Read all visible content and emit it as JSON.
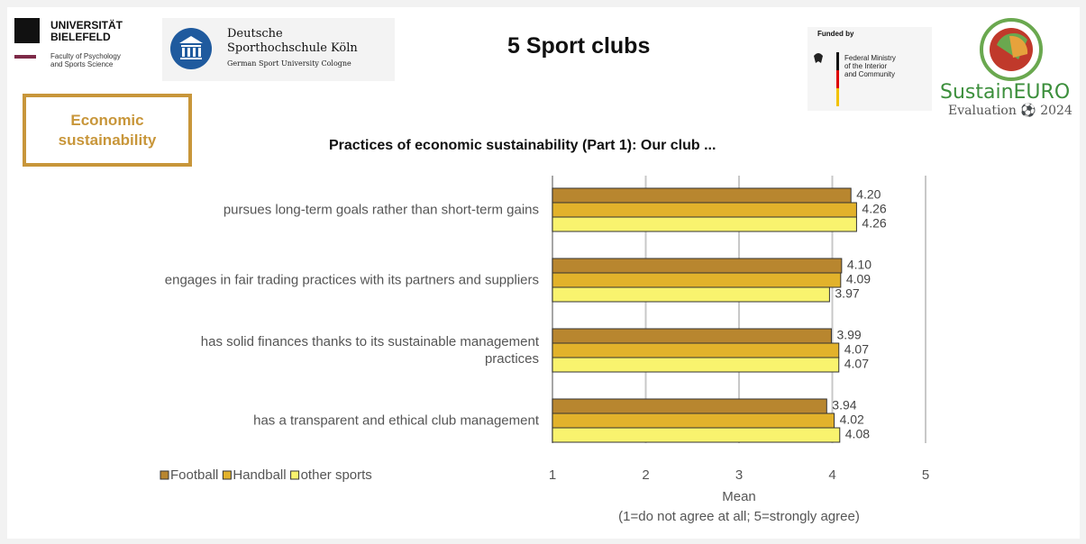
{
  "header": {
    "uni": [
      "UNIVERSITÄT",
      "BIELEFELD"
    ],
    "uni_faculty": [
      "Faculty of Psychology",
      "and Sports Science"
    ],
    "dshs": [
      "Deutsche",
      "Sporthochschule Köln"
    ],
    "dshs_en": "German Sport University Cologne",
    "slide_title": "5 Sport clubs",
    "funded_by": "Funded by",
    "ministry": [
      "Federal Ministry",
      "of the Interior",
      "and Community"
    ],
    "brand": "SustainEURO",
    "brand_sub": "Evaluation",
    "brand_year": "2024"
  },
  "section": "Economic sustainability",
  "chart_data": {
    "type": "bar",
    "orientation": "horizontal",
    "title": "Practices of economic sustainability (Part 1): Our club ...",
    "categories": [
      "pursues long-term goals rather than short-term gains",
      "engages in fair trading practices with its partners and suppliers",
      "has solid finances thanks to its sustainable management practices",
      "has a transparent and ethical club management"
    ],
    "series": [
      {
        "name": "Football",
        "color": "#b8862f",
        "values": [
          4.2,
          4.1,
          3.99,
          3.94
        ],
        "value_labels": [
          "4.20",
          "4.10",
          "3.99",
          "3.94"
        ]
      },
      {
        "name": "Handball",
        "color": "#e2b22b",
        "values": [
          4.26,
          4.09,
          4.07,
          4.02
        ],
        "value_labels": [
          "4.26",
          "4.09",
          "4.07",
          "4.02"
        ]
      },
      {
        "name": "other sports",
        "color": "#f9f36e",
        "values": [
          4.26,
          3.97,
          4.07,
          4.08
        ],
        "value_labels": [
          "4.26",
          "3.97",
          "4.07",
          "4.08"
        ]
      }
    ],
    "xlim": [
      1,
      5
    ],
    "xticks": [
      1,
      2,
      3,
      4,
      5
    ],
    "xlabel": "Mean",
    "xlabel_note": "(1=do not agree at all; 5=strongly agree)",
    "grid": true,
    "legend": "bottom-left"
  }
}
